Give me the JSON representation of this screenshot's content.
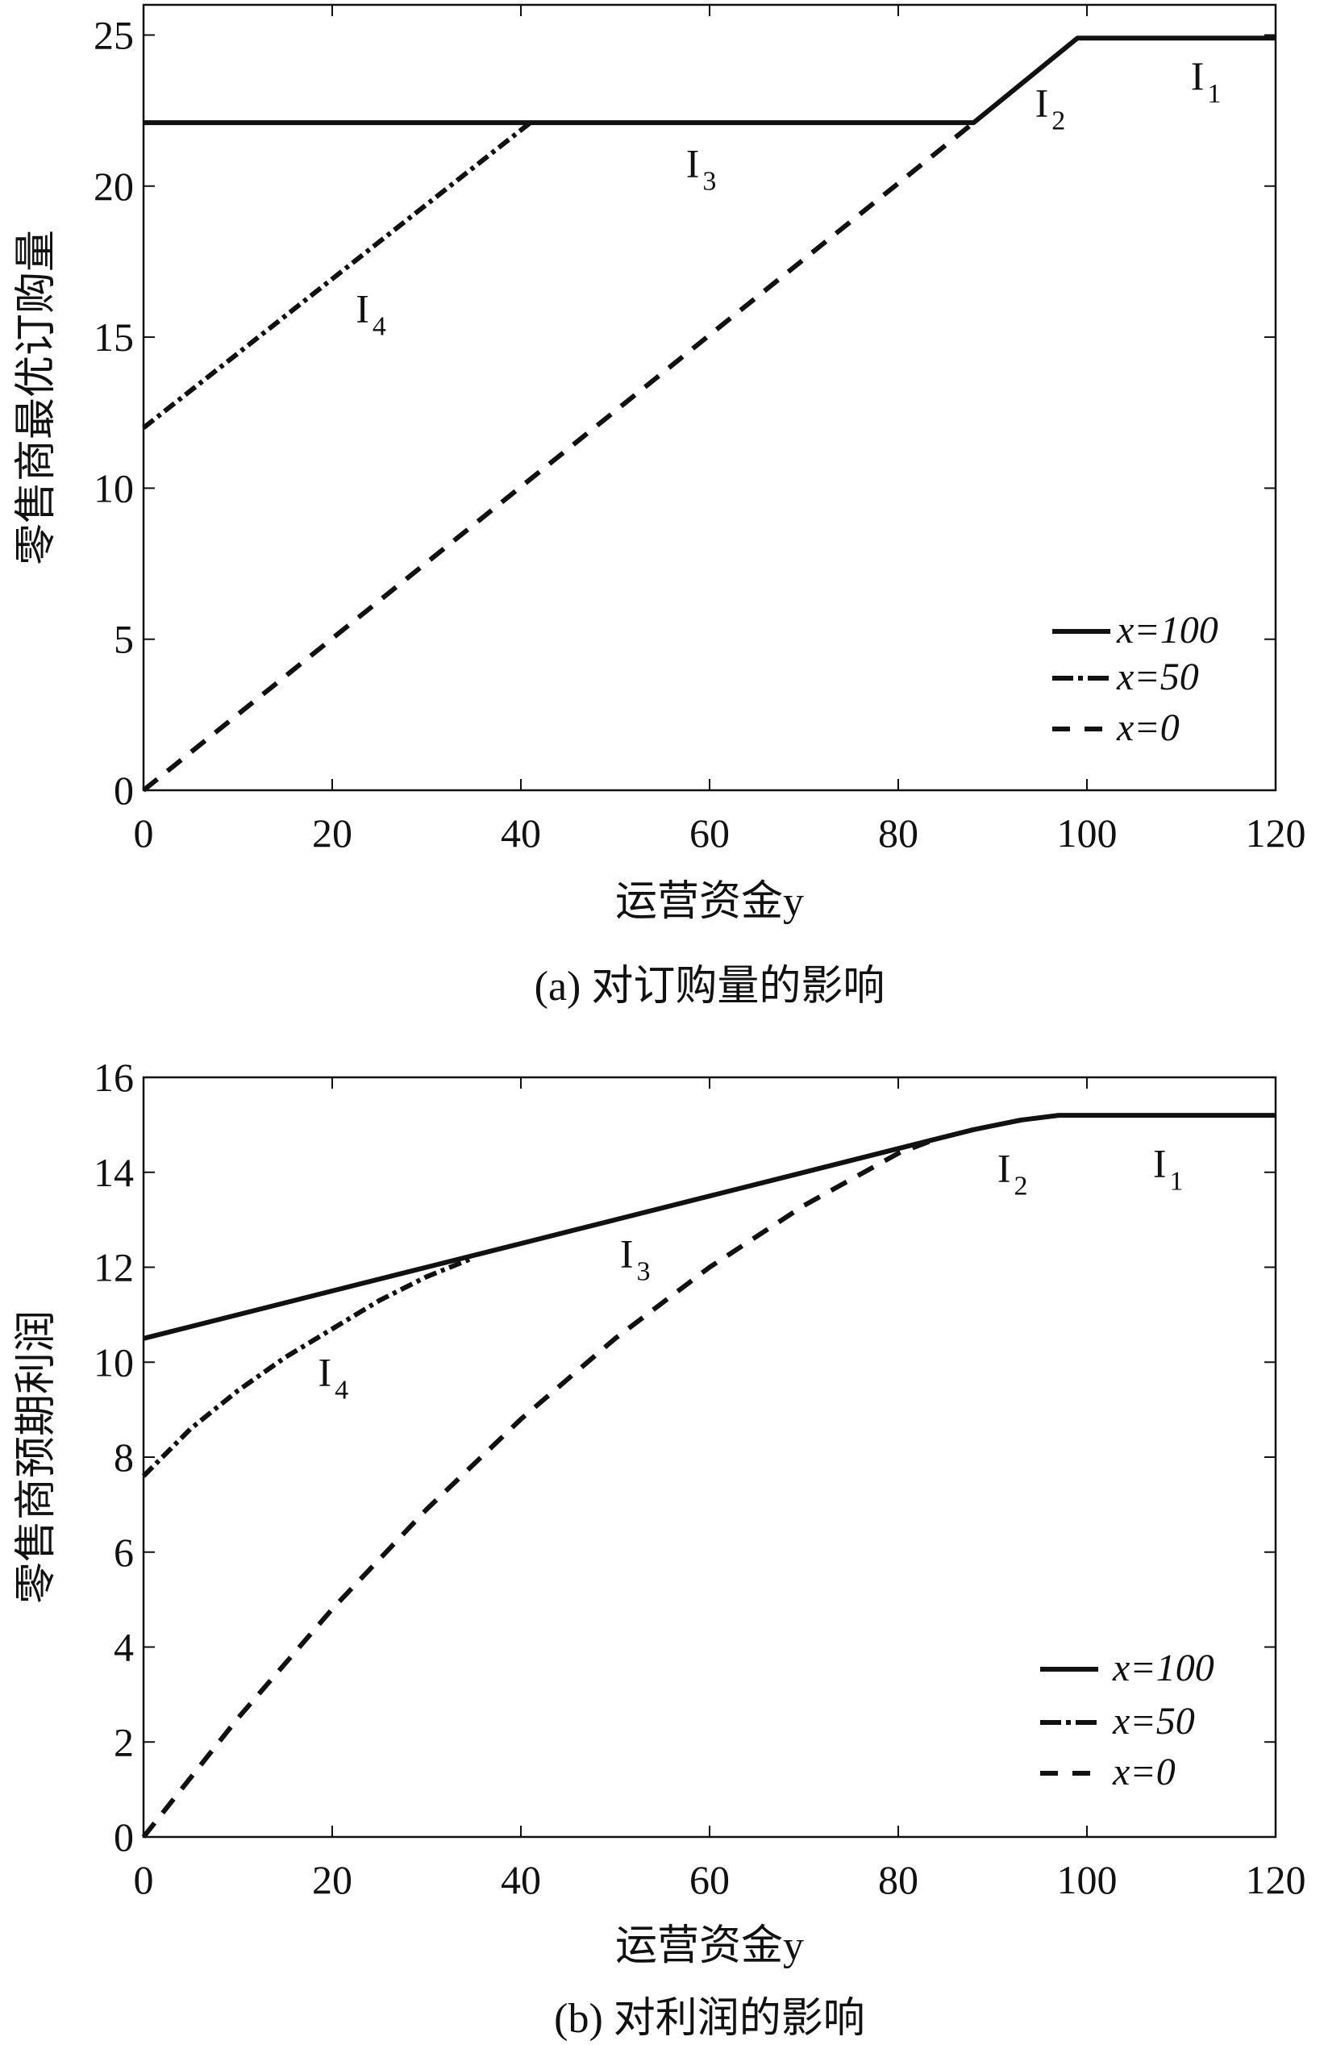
{
  "chart_data": [
    {
      "type": "line",
      "caption": "(a) 对订购量的影响",
      "xlabel": "运营资金y",
      "ylabel": "零售商最优订购量",
      "xlim": [
        0,
        120
      ],
      "ylim": [
        0,
        26
      ],
      "xticks": [
        0,
        20,
        40,
        60,
        80,
        100,
        120
      ],
      "yticks": [
        0,
        5,
        10,
        15,
        20,
        25
      ],
      "legend_position": "bottom-right",
      "series": [
        {
          "name": "x=100",
          "style": "solid",
          "x": [
            0,
            88,
            99,
            120
          ],
          "y": [
            22.1,
            22.1,
            24.9,
            24.9
          ]
        },
        {
          "name": "x=50",
          "style": "dashdot",
          "x": [
            0,
            41
          ],
          "y": [
            12.0,
            22.1
          ]
        },
        {
          "name": "x=0",
          "style": "dashed",
          "x": [
            0,
            88
          ],
          "y": [
            0,
            22.1
          ]
        }
      ],
      "annotations": [
        {
          "text": "I",
          "sub": "1",
          "x": 111,
          "y": 23.2
        },
        {
          "text": "I",
          "sub": "2",
          "x": 94.5,
          "y": 22.3
        },
        {
          "text": "I",
          "sub": "3",
          "x": 57.5,
          "y": 20.3
        },
        {
          "text": "I",
          "sub": "4",
          "x": 22.5,
          "y": 15.5
        }
      ]
    },
    {
      "type": "line",
      "caption": "(b) 对利润的影响",
      "xlabel": "运营资金y",
      "ylabel": "零售商预期利润",
      "xlim": [
        0,
        120
      ],
      "ylim": [
        0,
        16
      ],
      "xticks": [
        0,
        20,
        40,
        60,
        80,
        100,
        120
      ],
      "yticks": [
        0,
        2,
        4,
        6,
        8,
        10,
        12,
        14,
        16
      ],
      "legend_position": "bottom-right",
      "series": [
        {
          "name": "x=100",
          "style": "solid",
          "x": [
            0,
            10,
            20,
            30,
            40,
            50,
            60,
            70,
            80,
            88,
            93,
            97,
            120
          ],
          "y": [
            10.5,
            11.0,
            11.5,
            12.0,
            12.5,
            13.0,
            13.5,
            14.0,
            14.5,
            14.9,
            15.1,
            15.2,
            15.2
          ]
        },
        {
          "name": "x=50",
          "style": "dashdot",
          "x": [
            0,
            5,
            10,
            15,
            20,
            25,
            30,
            35
          ],
          "y": [
            7.6,
            8.6,
            9.4,
            10.1,
            10.7,
            11.3,
            11.8,
            12.2
          ]
        },
        {
          "name": "x=0",
          "style": "dashed",
          "x": [
            0,
            10,
            20,
            30,
            40,
            50,
            60,
            70,
            80,
            84
          ],
          "y": [
            0,
            2.5,
            4.8,
            6.9,
            8.8,
            10.5,
            12.0,
            13.3,
            14.4,
            14.7
          ]
        }
      ],
      "annotations": [
        {
          "text": "I",
          "sub": "1",
          "x": 107,
          "y": 13.9
        },
        {
          "text": "I",
          "sub": "2",
          "x": 90.5,
          "y": 13.8
        },
        {
          "text": "I",
          "sub": "3",
          "x": 50.5,
          "y": 12.0
        },
        {
          "text": "I",
          "sub": "4",
          "x": 18.5,
          "y": 9.5
        }
      ]
    }
  ]
}
